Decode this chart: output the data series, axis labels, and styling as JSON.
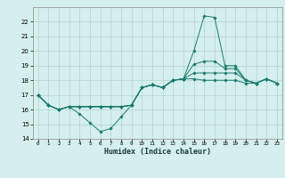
{
  "xlabel": "Humidex (Indice chaleur)",
  "xlim": [
    -0.5,
    23.5
  ],
  "ylim": [
    14,
    23
  ],
  "yticks": [
    14,
    15,
    16,
    17,
    18,
    19,
    20,
    21,
    22
  ],
  "xticks": [
    0,
    1,
    2,
    3,
    4,
    5,
    6,
    7,
    8,
    9,
    10,
    11,
    12,
    13,
    14,
    15,
    16,
    17,
    18,
    19,
    20,
    21,
    22,
    23
  ],
  "bg_color": "#d5efee",
  "grid_color": "#aed4d0",
  "line_color": "#1a7a6e",
  "lines": [
    [
      17.0,
      16.3,
      16.0,
      16.2,
      15.7,
      15.1,
      14.5,
      14.7,
      15.5,
      16.3,
      17.5,
      17.7,
      17.5,
      18.0,
      18.1,
      20.0,
      22.4,
      22.3,
      19.0,
      19.0,
      18.0,
      17.8,
      18.1,
      17.8
    ],
    [
      17.0,
      16.3,
      16.0,
      16.2,
      16.2,
      16.2,
      16.2,
      16.2,
      16.2,
      16.3,
      17.5,
      17.7,
      17.5,
      18.0,
      18.1,
      19.1,
      19.3,
      19.3,
      18.8,
      18.8,
      18.0,
      17.8,
      18.1,
      17.8
    ],
    [
      17.0,
      16.3,
      16.0,
      16.2,
      16.2,
      16.2,
      16.2,
      16.2,
      16.2,
      16.3,
      17.5,
      17.7,
      17.5,
      18.0,
      18.1,
      18.5,
      18.5,
      18.5,
      18.5,
      18.5,
      18.0,
      17.8,
      18.1,
      17.8
    ],
    [
      17.0,
      16.3,
      16.0,
      16.2,
      16.2,
      16.2,
      16.2,
      16.2,
      16.2,
      16.3,
      17.5,
      17.7,
      17.5,
      18.0,
      18.1,
      18.1,
      18.0,
      18.0,
      18.0,
      18.0,
      17.8,
      17.8,
      18.1,
      17.8
    ]
  ]
}
